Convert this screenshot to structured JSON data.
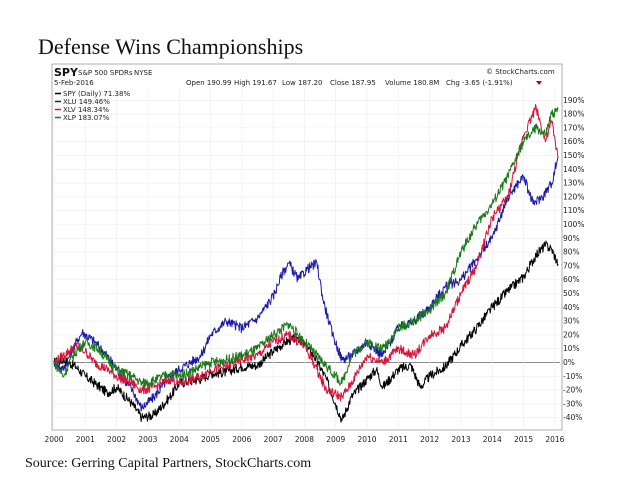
{
  "page": {
    "title": "Defense Wins Championships",
    "source": "Source: Gerring Capital Partners, StockCharts.com"
  },
  "chart_data": {
    "type": "line",
    "symbol": "SPY",
    "name": "S&P 500 SPDRs",
    "exchange": "NYSE",
    "watermark": "© StockCharts.com",
    "date": "5-Feb-2016",
    "quote": {
      "open": "Open 190.99",
      "high": "High 191.67",
      "low": "Low 187.20",
      "close": "Close 187.95",
      "volume": "Volume 180.8M",
      "chg": "Chg -3.65 (-1.91%)"
    },
    "legend": [
      "SPY (Daily) 71.38%",
      "XLU 149.46%",
      "XLV 148.34%",
      "XLP 183.07%"
    ],
    "x_ticks": [
      "2000",
      "2001",
      "2002",
      "2003",
      "2004",
      "2005",
      "2006",
      "2007",
      "2008",
      "2009",
      "2010",
      "2011",
      "2012",
      "2013",
      "2014",
      "2015",
      "2016"
    ],
    "y_ticks": [
      "190%",
      "180%",
      "170%",
      "160%",
      "150%",
      "140%",
      "130%",
      "120%",
      "110%",
      "100%",
      "90%",
      "80%",
      "70%",
      "60%",
      "50%",
      "40%",
      "30%",
      "20%",
      "10%",
      "0%",
      "-10%",
      "-20%",
      "-30%",
      "-40%"
    ],
    "ylim": [
      -46,
      196
    ],
    "xlim": [
      2000,
      2016.1
    ],
    "series": [
      {
        "name": "SPY",
        "color": "#000000",
        "x": [
          2000,
          2000.3,
          2000.7,
          2001,
          2001.3,
          2001.7,
          2002,
          2002.5,
          2002.8,
          2003.2,
          2003.7,
          2004,
          2004.7,
          2005,
          2005.5,
          2006,
          2006.5,
          2007,
          2007.4,
          2007.8,
          2008.3,
          2008.7,
          2009.2,
          2009.5,
          2010,
          2010.3,
          2010.5,
          2011,
          2011.4,
          2011.7,
          2012,
          2012.5,
          2013,
          2013.5,
          2014,
          2014.5,
          2015,
          2015.4,
          2015.7,
          2015.9,
          2016.1
        ],
        "y": [
          0,
          2,
          -3,
          -10,
          -15,
          -22,
          -18,
          -30,
          -40,
          -38,
          -25,
          -15,
          -12,
          -8,
          -7,
          -3,
          -2,
          8,
          15,
          18,
          5,
          -12,
          -42,
          -25,
          -12,
          -5,
          -18,
          -5,
          -2,
          -18,
          -10,
          -3,
          12,
          25,
          40,
          52,
          62,
          78,
          85,
          82,
          71.38
        ]
      },
      {
        "name": "XLU",
        "color": "#1a1aa8",
        "x": [
          2000,
          2000.3,
          2000.6,
          2000.9,
          2001.3,
          2001.7,
          2002,
          2002.5,
          2002.8,
          2003.2,
          2003.7,
          2004,
          2004.7,
          2005,
          2005.5,
          2006,
          2006.5,
          2007,
          2007.3,
          2007.5,
          2007.8,
          2008.1,
          2008.4,
          2008.6,
          2008.9,
          2009.2,
          2009.5,
          2010,
          2010.5,
          2011,
          2011.5,
          2012,
          2012.5,
          2013,
          2013.5,
          2014,
          2014.5,
          2015,
          2015.3,
          2015.6,
          2015.9,
          2016.1
        ],
        "y": [
          0,
          -5,
          10,
          22,
          15,
          5,
          -5,
          -20,
          -33,
          -25,
          -10,
          -5,
          5,
          20,
          30,
          25,
          32,
          48,
          65,
          72,
          60,
          68,
          72,
          45,
          20,
          2,
          5,
          15,
          5,
          25,
          30,
          40,
          55,
          60,
          75,
          90,
          120,
          135,
          115,
          120,
          130,
          149.46
        ]
      },
      {
        "name": "XLV",
        "color": "#d6143c",
        "x": [
          2000,
          2000.3,
          2000.7,
          2001,
          2001.3,
          2001.7,
          2002,
          2002.5,
          2002.8,
          2003.2,
          2003.7,
          2004,
          2004.7,
          2005,
          2005.5,
          2006,
          2006.5,
          2007,
          2007.5,
          2008,
          2008.4,
          2008.7,
          2009.2,
          2009.5,
          2010,
          2010.5,
          2011,
          2011.5,
          2012,
          2012.5,
          2013,
          2013.5,
          2014,
          2014.5,
          2015,
          2015.4,
          2015.7,
          2015.9,
          2016.1
        ],
        "y": [
          0,
          5,
          12,
          8,
          0,
          -5,
          -10,
          -15,
          -20,
          -18,
          -12,
          -15,
          -10,
          -5,
          -3,
          2,
          5,
          15,
          20,
          12,
          -5,
          -20,
          -25,
          -15,
          5,
          0,
          10,
          5,
          20,
          25,
          50,
          70,
          105,
          120,
          165,
          185,
          160,
          175,
          148.34
        ]
      },
      {
        "name": "XLP",
        "color": "#1a7a1a",
        "x": [
          2000,
          2000.3,
          2000.6,
          2001,
          2001.4,
          2001.7,
          2002,
          2002.5,
          2002.8,
          2003.2,
          2003.7,
          2004,
          2004.7,
          2005,
          2005.5,
          2006,
          2006.5,
          2007,
          2007.5,
          2008,
          2008.4,
          2008.8,
          2009.2,
          2009.5,
          2010,
          2010.5,
          2011,
          2011.5,
          2012,
          2012.5,
          2013,
          2013.5,
          2014,
          2014.5,
          2015,
          2015.4,
          2015.7,
          2015.9,
          2016.1
        ],
        "y": [
          0,
          -10,
          5,
          15,
          10,
          2,
          -5,
          -10,
          -15,
          -13,
          -8,
          -10,
          -3,
          0,
          2,
          5,
          10,
          20,
          28,
          15,
          5,
          -5,
          -15,
          5,
          15,
          10,
          25,
          30,
          38,
          50,
          80,
          100,
          115,
          135,
          160,
          170,
          165,
          180,
          183.07
        ]
      }
    ]
  }
}
